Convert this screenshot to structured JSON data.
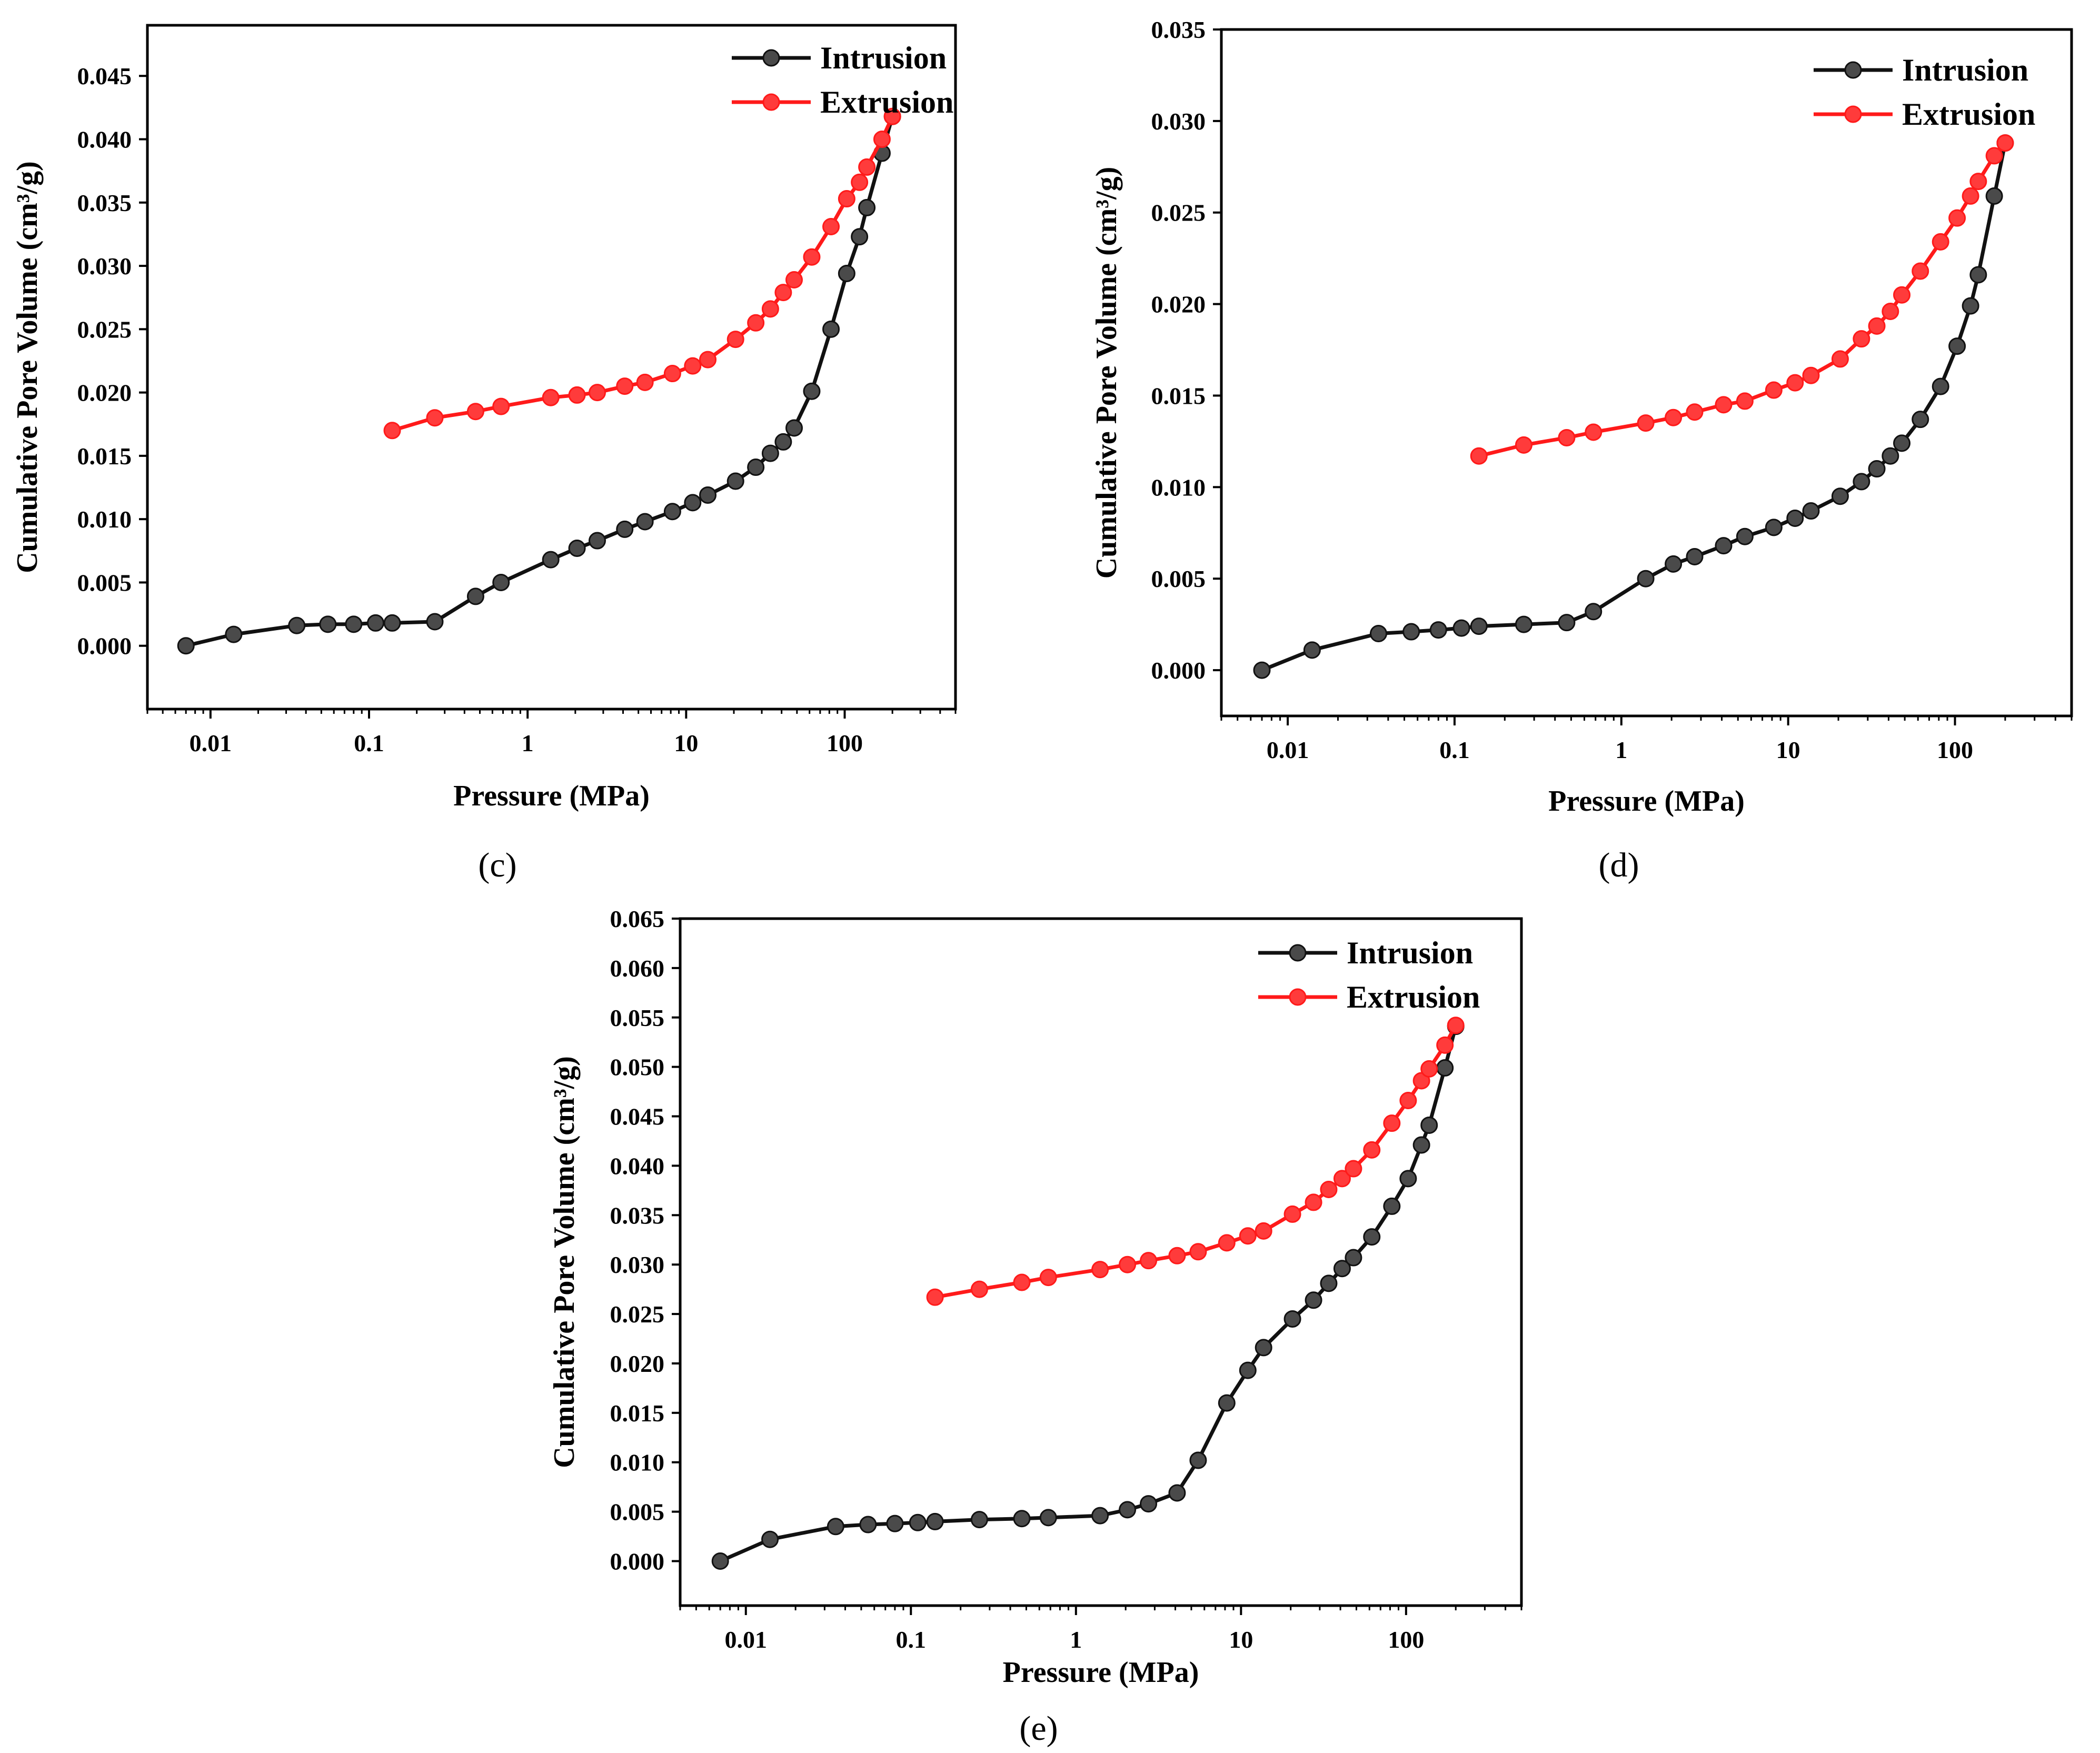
{
  "colors": {
    "intrusion": "#111111",
    "extrusion": "#ff1a1a",
    "marker_intrusion": "#4a4a4a",
    "marker_extrusion": "#ff3b3b"
  },
  "chart_data": [
    {
      "type": "line",
      "panel": "(c)",
      "xscale": "log",
      "xlabel": "Pressure (MPa)",
      "ylabel": "Cumulative Pore Volume (cm³/g)",
      "xlim": [
        0.004,
        500
      ],
      "ylim": [
        -0.005,
        0.049
      ],
      "xticks": [
        0.01,
        0.1,
        1,
        10,
        100
      ],
      "xtick_labels": [
        "0.01",
        "0.1",
        "1",
        "10",
        "100"
      ],
      "yticks": [
        0,
        0.005,
        0.01,
        0.015,
        0.02,
        0.025,
        0.03,
        0.035,
        0.04,
        0.045
      ],
      "ytick_labels": [
        "0.000",
        "0.005",
        "0.010",
        "0.015",
        "0.020",
        "0.025",
        "0.030",
        "0.035",
        "0.040",
        "0.045"
      ],
      "legend": "top-right",
      "series": [
        {
          "name": "Intrusion",
          "color": "#111111",
          "x": [
            0.007,
            0.014,
            0.035,
            0.055,
            0.08,
            0.11,
            0.14,
            0.26,
            0.47,
            0.68,
            1.4,
            2.05,
            2.75,
            4.1,
            5.5,
            8.2,
            11,
            13.7,
            20.5,
            27.5,
            34,
            41,
            48,
            62,
            82,
            103,
            124,
            138,
            172,
            200
          ],
          "y": [
            0.0,
            0.0009,
            0.0016,
            0.0017,
            0.0017,
            0.0018,
            0.0018,
            0.0019,
            0.0039,
            0.005,
            0.0068,
            0.0077,
            0.0083,
            0.0092,
            0.0098,
            0.0106,
            0.0113,
            0.0119,
            0.013,
            0.0141,
            0.0152,
            0.0161,
            0.0172,
            0.0201,
            0.025,
            0.0294,
            0.0323,
            0.0346,
            0.0389,
            0.0418
          ]
        },
        {
          "name": "Extrusion",
          "color": "#ff1a1a",
          "x": [
            0.14,
            0.26,
            0.47,
            0.68,
            1.4,
            2.05,
            2.75,
            4.1,
            5.5,
            8.2,
            11,
            13.7,
            20.5,
            27.5,
            34,
            41,
            48,
            62,
            82,
            103,
            124,
            138,
            172,
            200
          ],
          "y": [
            0.017,
            0.018,
            0.0185,
            0.0189,
            0.0196,
            0.0198,
            0.02,
            0.0205,
            0.0208,
            0.0215,
            0.0221,
            0.0226,
            0.0242,
            0.0255,
            0.0266,
            0.0279,
            0.0289,
            0.0307,
            0.0331,
            0.0353,
            0.0366,
            0.0378,
            0.04,
            0.0418
          ]
        }
      ],
      "caption": "(c)"
    },
    {
      "type": "line",
      "panel": "(d)",
      "xscale": "log",
      "xlabel": "Pressure (MPa)",
      "ylabel": "Cumulative Pore Volume (cm³/g)",
      "xlim": [
        0.004,
        500
      ],
      "ylim": [
        -0.0025,
        0.035
      ],
      "xticks": [
        0.01,
        0.1,
        1,
        10,
        100
      ],
      "xtick_labels": [
        "0.01",
        "0.1",
        "1",
        "10",
        "100"
      ],
      "yticks": [
        0,
        0.005,
        0.01,
        0.015,
        0.02,
        0.025,
        0.03,
        0.035
      ],
      "ytick_labels": [
        "0.000",
        "0.005",
        "0.010",
        "0.015",
        "0.020",
        "0.025",
        "0.030",
        "0.035"
      ],
      "legend": "top-right",
      "series": [
        {
          "name": "Intrusion",
          "color": "#111111",
          "x": [
            0.007,
            0.014,
            0.035,
            0.055,
            0.08,
            0.11,
            0.14,
            0.26,
            0.47,
            0.68,
            1.4,
            2.05,
            2.75,
            4.1,
            5.5,
            8.2,
            11,
            13.7,
            20.5,
            27.5,
            34,
            41,
            48,
            62,
            82,
            103,
            124,
            138,
            172,
            200
          ],
          "y": [
            0.0,
            0.0011,
            0.002,
            0.0021,
            0.0022,
            0.0023,
            0.0024,
            0.0025,
            0.0026,
            0.0032,
            0.005,
            0.0058,
            0.0062,
            0.0068,
            0.0073,
            0.0078,
            0.0083,
            0.0087,
            0.0095,
            0.0103,
            0.011,
            0.0117,
            0.0124,
            0.0137,
            0.0155,
            0.0177,
            0.0199,
            0.0216,
            0.0259,
            0.0288
          ]
        },
        {
          "name": "Extrusion",
          "color": "#ff1a1a",
          "x": [
            0.14,
            0.26,
            0.47,
            0.68,
            1.4,
            2.05,
            2.75,
            4.1,
            5.5,
            8.2,
            11,
            13.7,
            20.5,
            27.5,
            34,
            41,
            48,
            62,
            82,
            103,
            124,
            138,
            172,
            200
          ],
          "y": [
            0.0117,
            0.0123,
            0.0127,
            0.013,
            0.0135,
            0.0138,
            0.0141,
            0.0145,
            0.0147,
            0.0153,
            0.0157,
            0.0161,
            0.017,
            0.0181,
            0.0188,
            0.0196,
            0.0205,
            0.0218,
            0.0234,
            0.0247,
            0.0259,
            0.0267,
            0.0281,
            0.0288
          ]
        }
      ],
      "caption": "(d)"
    },
    {
      "type": "line",
      "panel": "(e)",
      "xscale": "log",
      "xlabel": "Pressure (MPa)",
      "ylabel": "Cumulative Pore Volume (cm³/g)",
      "xlim": [
        0.004,
        500
      ],
      "ylim": [
        -0.0045,
        0.065
      ],
      "xticks": [
        0.01,
        0.1,
        1,
        10,
        100
      ],
      "xtick_labels": [
        "0.01",
        "0.1",
        "1",
        "10",
        "100"
      ],
      "yticks": [
        0,
        0.005,
        0.01,
        0.015,
        0.02,
        0.025,
        0.03,
        0.035,
        0.04,
        0.045,
        0.05,
        0.055,
        0.06,
        0.065
      ],
      "ytick_labels": [
        "0.000",
        "0.005",
        "0.010",
        "0.015",
        "0.020",
        "0.025",
        "0.030",
        "0.035",
        "0.040",
        "0.045",
        "0.050",
        "0.055",
        "0.060",
        "0.065"
      ],
      "legend": "top-right",
      "series": [
        {
          "name": "Intrusion",
          "color": "#111111",
          "x": [
            0.007,
            0.014,
            0.035,
            0.055,
            0.08,
            0.11,
            0.14,
            0.26,
            0.47,
            0.68,
            1.4,
            2.05,
            2.75,
            4.1,
            5.5,
            8.2,
            11,
            13.7,
            20.5,
            27.5,
            34,
            41,
            48,
            62,
            82,
            103,
            124,
            138,
            172,
            200
          ],
          "y": [
            0.0,
            0.0022,
            0.0035,
            0.0037,
            0.0038,
            0.0039,
            0.004,
            0.0042,
            0.0043,
            0.0044,
            0.0046,
            0.0052,
            0.0058,
            0.0069,
            0.0102,
            0.016,
            0.0193,
            0.0216,
            0.0245,
            0.0264,
            0.0281,
            0.0296,
            0.0307,
            0.0328,
            0.0359,
            0.0387,
            0.0421,
            0.0441,
            0.0499,
            0.0541
          ]
        },
        {
          "name": "Extrusion",
          "color": "#ff1a1a",
          "x": [
            0.14,
            0.26,
            0.47,
            0.68,
            1.4,
            2.05,
            2.75,
            4.1,
            5.5,
            8.2,
            11,
            13.7,
            20.5,
            27.5,
            34,
            41,
            48,
            62,
            82,
            103,
            124,
            138,
            172,
            200
          ],
          "y": [
            0.0267,
            0.0275,
            0.0282,
            0.0287,
            0.0295,
            0.03,
            0.0304,
            0.0309,
            0.0313,
            0.0322,
            0.0329,
            0.0334,
            0.0351,
            0.0363,
            0.0376,
            0.0387,
            0.0397,
            0.0416,
            0.0443,
            0.0466,
            0.0486,
            0.0498,
            0.0522,
            0.0542
          ]
        }
      ],
      "caption": "(e)"
    }
  ]
}
